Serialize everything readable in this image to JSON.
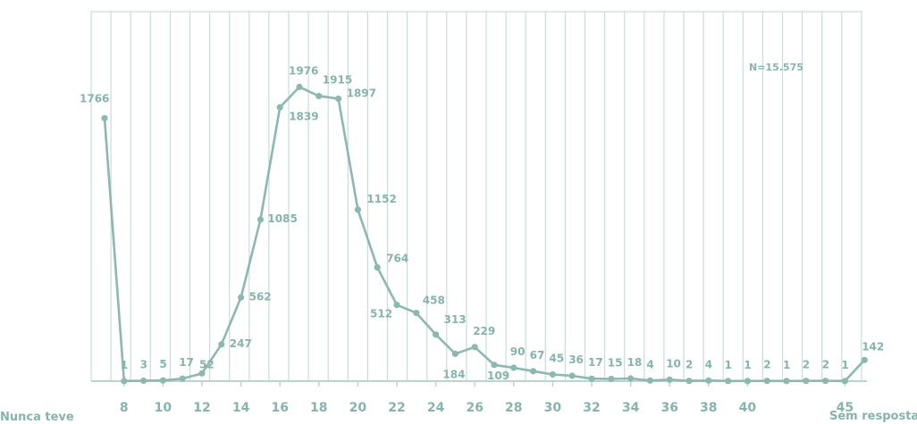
{
  "chart_data": {
    "type": "line",
    "title": "",
    "xlabel": "",
    "ylabel": "",
    "annotation": "N=15.575",
    "start_category": "Nunca teve",
    "end_category": "Sem resposta",
    "tick_labels": [
      "8",
      "10",
      "12",
      "14",
      "16",
      "18",
      "20",
      "22",
      "24",
      "26",
      "28",
      "30",
      "32",
      "34",
      "36",
      "38",
      "40",
      "45"
    ],
    "x": [
      "Nunca teve",
      "8",
      "9",
      "10",
      "11",
      "12",
      "13",
      "14",
      "15",
      "16",
      "17",
      "18",
      "19",
      "20",
      "21",
      "22",
      "23",
      "24",
      "25",
      "26",
      "27",
      "28",
      "29",
      "30",
      "31",
      "32",
      "33",
      "34",
      "35",
      "36",
      "37",
      "38",
      "39",
      "40",
      "41",
      "42",
      "43",
      "44",
      "45",
      "Sem resposta"
    ],
    "values": [
      1766,
      1,
      3,
      5,
      17,
      52,
      247,
      562,
      1085,
      1839,
      1976,
      1915,
      1897,
      1152,
      764,
      512,
      458,
      313,
      184,
      229,
      109,
      90,
      67,
      45,
      36,
      17,
      15,
      18,
      4,
      10,
      2,
      4,
      1,
      1,
      2,
      1,
      2,
      2,
      1,
      142
    ],
    "labels": [
      "1766",
      "1",
      "3",
      "5",
      "17",
      "52",
      "247",
      "562",
      "1085",
      "1839",
      "1976",
      "1915",
      "1897",
      "1152",
      "764",
      "512",
      "458",
      "313",
      "184",
      "229",
      "109",
      "90",
      "67",
      "45",
      "36",
      "17",
      "15",
      "18",
      "4",
      "10",
      "2",
      "4",
      "1",
      "1",
      "2",
      "1",
      "2",
      "2",
      "1",
      "142"
    ],
    "ylim": [
      0,
      2000
    ],
    "grid": "vertical",
    "legend": "none",
    "line_color": "#8bb8b0",
    "grid_color": "#c9ddd9"
  }
}
